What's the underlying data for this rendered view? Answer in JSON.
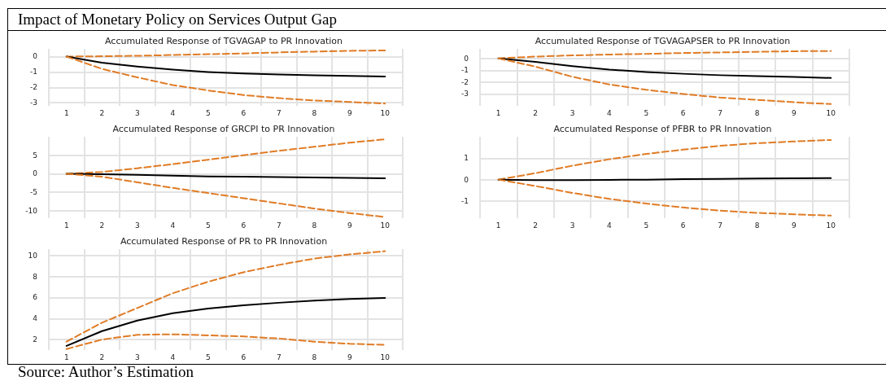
{
  "chart_data": [
    {
      "type": "line",
      "title": "Accumulated Response of TGVAGAP to PR Innovation",
      "annotations": [
        "Impact of Monetary Policy on Services Output Gap"
      ],
      "categories": [
        "1",
        "2",
        "3",
        "4",
        "5",
        "6",
        "7",
        "8",
        "9",
        "10"
      ],
      "series": [
        {
          "color": "#e07b25",
          "line_style": "dashed",
          "values": [
            0,
            0.02,
            0.05,
            0.1,
            0.15,
            0.2,
            0.27,
            0.32,
            0.37,
            0.4
          ]
        },
        {
          "color": "#000000",
          "line_style": "solid",
          "values": [
            0,
            -0.4,
            -0.65,
            -0.85,
            -1.0,
            -1.1,
            -1.17,
            -1.22,
            -1.26,
            -1.3
          ]
        },
        {
          "color": "#e07b25",
          "line_style": "dashed",
          "values": [
            0,
            -0.8,
            -1.35,
            -1.85,
            -2.2,
            -2.5,
            -2.7,
            -2.85,
            -2.95,
            -3.05
          ]
        }
      ],
      "ylim": [
        -3.2,
        0.5
      ],
      "yticks": [
        -3,
        -2,
        -1,
        0
      ],
      "grid": true,
      "marker": "none"
    },
    {
      "type": "line",
      "title": "Accumulated Response of TGVAGAPSER to PR Innovation",
      "categories": [
        "1",
        "2",
        "3",
        "4",
        "5",
        "6",
        "7",
        "8",
        "9",
        "10"
      ],
      "series": [
        {
          "color": "#e07b25",
          "line_style": "dashed",
          "values": [
            0,
            0.15,
            0.25,
            0.32,
            0.38,
            0.45,
            0.5,
            0.55,
            0.6,
            0.62
          ]
        },
        {
          "color": "#000000",
          "line_style": "solid",
          "values": [
            0,
            -0.3,
            -0.65,
            -0.95,
            -1.15,
            -1.3,
            -1.42,
            -1.5,
            -1.57,
            -1.65
          ]
        },
        {
          "color": "#e07b25",
          "line_style": "dashed",
          "values": [
            0,
            -0.7,
            -1.55,
            -2.2,
            -2.65,
            -3.0,
            -3.3,
            -3.5,
            -3.7,
            -3.85
          ]
        }
      ],
      "ylim": [
        -4,
        0.8
      ],
      "yticks": [
        -3,
        -2,
        -1,
        0
      ],
      "grid": true,
      "marker": "none"
    },
    {
      "type": "line",
      "title": "Accumulated Response of GRCPI to PR Innovation",
      "categories": [
        "1",
        "2",
        "3",
        "4",
        "5",
        "6",
        "7",
        "8",
        "9",
        "10"
      ],
      "series": [
        {
          "color": "#e07b25",
          "line_style": "dashed",
          "values": [
            0,
            0.5,
            1.5,
            2.6,
            3.8,
            5.0,
            6.2,
            7.3,
            8.4,
            9.3
          ]
        },
        {
          "color": "#000000",
          "line_style": "solid",
          "values": [
            0,
            -0.1,
            -0.3,
            -0.5,
            -0.7,
            -0.8,
            -0.9,
            -1.0,
            -1.1,
            -1.2
          ]
        },
        {
          "color": "#e07b25",
          "line_style": "dashed",
          "values": [
            0,
            -0.8,
            -2.3,
            -3.8,
            -5.2,
            -6.6,
            -8.0,
            -9.4,
            -10.6,
            -11.7
          ]
        }
      ],
      "ylim": [
        -12,
        10
      ],
      "yticks": [
        -10,
        -5,
        0,
        5
      ],
      "grid": true,
      "marker": "none"
    },
    {
      "type": "line",
      "title": "Accumulated Response of PFBR to PR Innovation",
      "categories": [
        "1",
        "2",
        "3",
        "4",
        "5",
        "6",
        "7",
        "8",
        "9",
        "10"
      ],
      "series": [
        {
          "color": "#e07b25",
          "line_style": "dashed",
          "values": [
            0,
            0.3,
            0.65,
            0.95,
            1.2,
            1.4,
            1.58,
            1.7,
            1.78,
            1.85
          ]
        },
        {
          "color": "#000000",
          "line_style": "solid",
          "values": [
            0,
            -0.02,
            -0.02,
            -0.01,
            0,
            0.02,
            0.03,
            0.05,
            0.06,
            0.07
          ]
        },
        {
          "color": "#e07b25",
          "line_style": "dashed",
          "values": [
            0,
            -0.3,
            -0.62,
            -0.9,
            -1.12,
            -1.3,
            -1.45,
            -1.55,
            -1.62,
            -1.68
          ]
        }
      ],
      "ylim": [
        -1.8,
        2
      ],
      "yticks": [
        -1,
        0,
        1
      ],
      "grid": true,
      "marker": "none"
    },
    {
      "type": "line",
      "title": "Accumulated Response of PR to PR Innovation",
      "annotations": [
        "Source: Author’s Estimation"
      ],
      "categories": [
        "1",
        "2",
        "3",
        "4",
        "5",
        "6",
        "7",
        "8",
        "9",
        "10"
      ],
      "series": [
        {
          "color": "#e07b25",
          "line_style": "dashed",
          "values": [
            1.8,
            3.6,
            5.0,
            6.4,
            7.5,
            8.4,
            9.1,
            9.7,
            10.1,
            10.4
          ]
        },
        {
          "color": "#000000",
          "line_style": "solid",
          "values": [
            1.4,
            2.8,
            3.8,
            4.5,
            4.95,
            5.25,
            5.5,
            5.7,
            5.85,
            5.95
          ]
        },
        {
          "color": "#e07b25",
          "line_style": "dashed",
          "values": [
            1.1,
            2.0,
            2.45,
            2.5,
            2.4,
            2.3,
            2.1,
            1.8,
            1.6,
            1.5
          ]
        }
      ],
      "ylim": [
        1,
        10.6
      ],
      "yticks": [
        2,
        4,
        6,
        8,
        10
      ],
      "grid": true,
      "marker": "none"
    }
  ]
}
